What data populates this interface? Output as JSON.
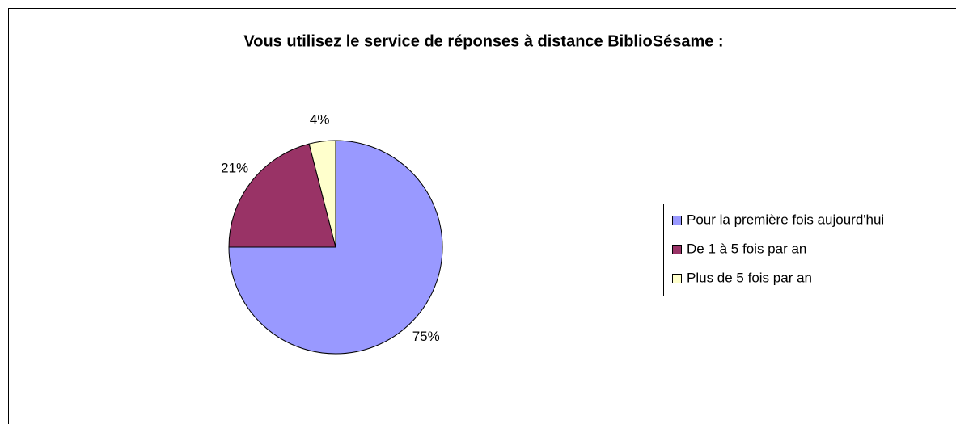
{
  "chart_data": {
    "type": "pie",
    "title": "Vous utilisez le service de réponses à distance BiblioSésame :",
    "categories": [
      "Pour la première fois aujourd'hui",
      "De 1 à 5 fois par an",
      "Plus de 5 fois par an"
    ],
    "values": [
      75,
      21,
      4
    ],
    "value_labels": [
      "75%",
      "21%",
      "4%"
    ],
    "colors": [
      "#9999ff",
      "#993366",
      "#ffffcc"
    ],
    "legend": "right"
  }
}
